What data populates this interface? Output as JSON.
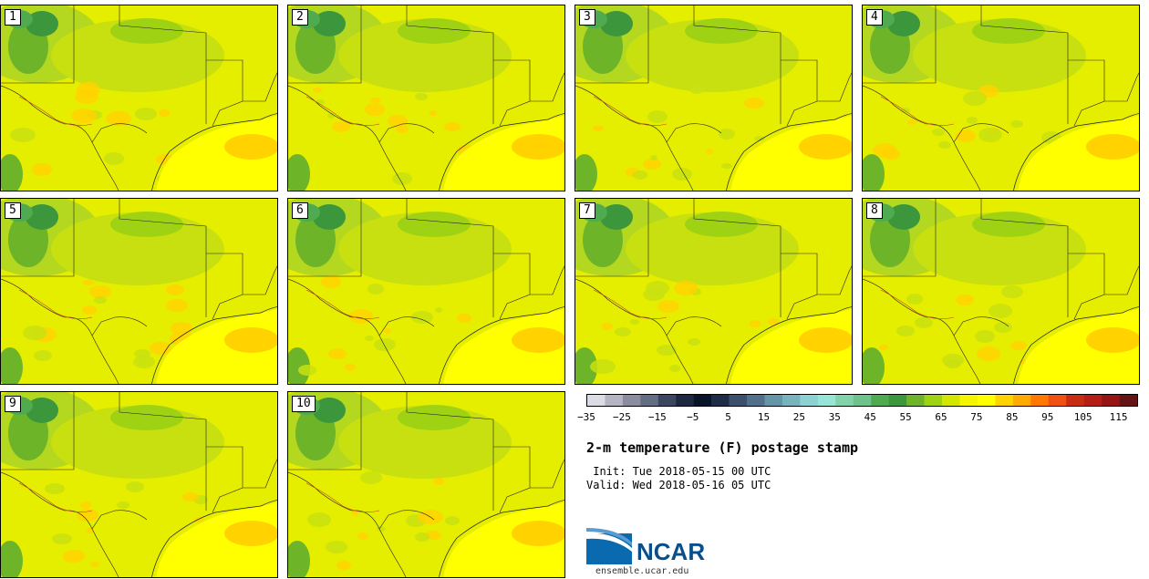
{
  "panels": [
    {
      "label": "1"
    },
    {
      "label": "2"
    },
    {
      "label": "3"
    },
    {
      "label": "4"
    },
    {
      "label": "5"
    },
    {
      "label": "6"
    },
    {
      "label": "7"
    },
    {
      "label": "8"
    },
    {
      "label": "9"
    },
    {
      "label": "10"
    }
  ],
  "colorbar": {
    "colors": [
      "#dcdce6",
      "#b4b4c3",
      "#8c8ca0",
      "#646e82",
      "#3c4660",
      "#1e2840",
      "#0a1428",
      "#1e2d46",
      "#3c506e",
      "#50708c",
      "#6496a8",
      "#78b4be",
      "#8cd2d2",
      "#96e6d7",
      "#82d2aa",
      "#6ec38c",
      "#50aa50",
      "#3c963c",
      "#6eb428",
      "#a0d214",
      "#d2e600",
      "#f5f500",
      "#ffff00",
      "#ffd200",
      "#ffaa00",
      "#ff7800",
      "#f05014",
      "#c82d14",
      "#b41e14",
      "#961414",
      "#641414"
    ],
    "tick_labels": [
      "−35",
      "−25",
      "−15",
      "−5",
      "5",
      "15",
      "25",
      "35",
      "45",
      "55",
      "65",
      "75",
      "85",
      "95",
      "105",
      "115"
    ]
  },
  "title": "2-m temperature (F) postage stamp",
  "init_line": " Init: Tue 2018-05-15 00 UTC",
  "valid_line": "Valid: Wed 2018-05-16 05 UTC",
  "logo": {
    "text": "NCAR",
    "url": "ensemble.ucar.edu"
  }
}
